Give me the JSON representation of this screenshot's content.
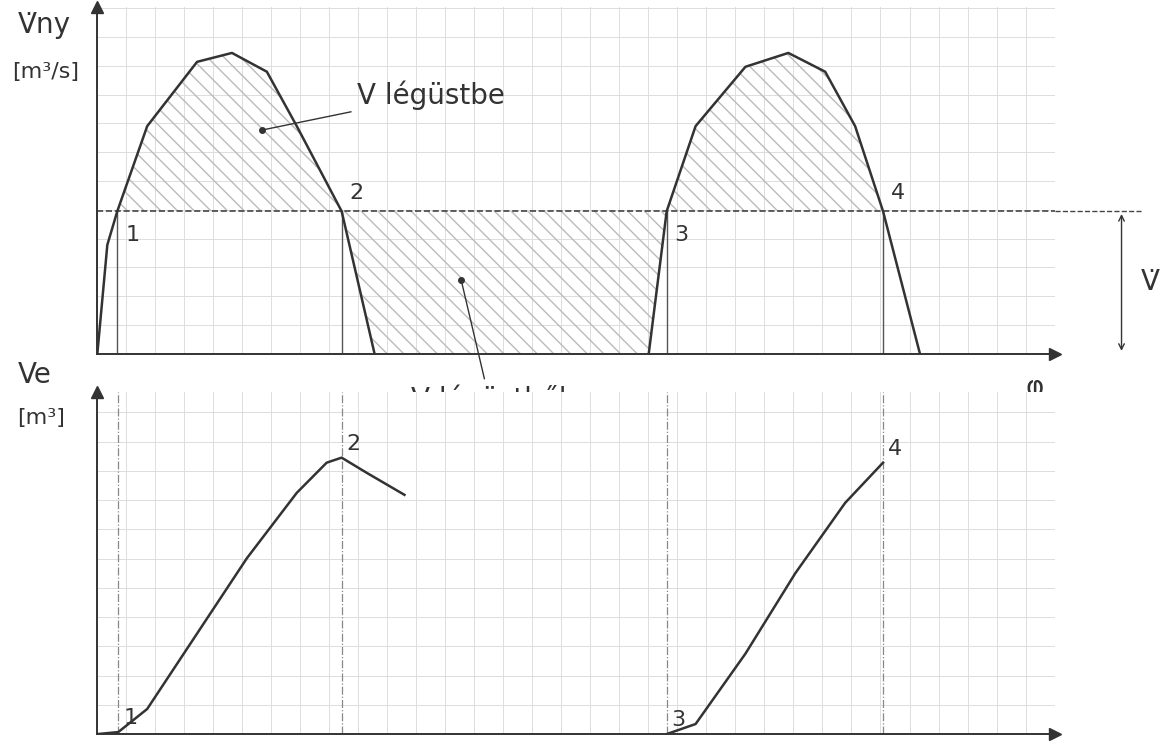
{
  "chart_data": [
    {
      "type": "line",
      "y_label": "V̇ny",
      "y_unit": "[m³/s]",
      "x_label": "φ",
      "xlim": [
        0,
        9.6
      ],
      "ylim": [
        0,
        3.5
      ],
      "tick_labels": false,
      "grid": true,
      "series": [
        {
          "x": [
            0,
            0.1,
            0.2,
            0.5,
            1.0,
            1.35,
            1.7,
            2.0,
            2.45,
            2.78
          ],
          "values": [
            0,
            1.1,
            1.44,
            2.3,
            2.95,
            3.04,
            2.85,
            2.3,
            1.44,
            0
          ],
          "color": "#333333"
        },
        {
          "x": [
            5.53,
            5.71,
            6.0,
            6.5,
            6.93,
            7.3,
            7.6,
            7.88,
            8.25
          ],
          "values": [
            0,
            1.44,
            2.3,
            2.9,
            3.04,
            2.85,
            2.3,
            1.44,
            0
          ],
          "color": "#333333"
        }
      ],
      "mean": {
        "label": "V̇",
        "value": 1.44,
        "line_style": "dashed"
      },
      "points": [
        {
          "label": "1",
          "x": 0.2,
          "y": 1.44
        },
        {
          "label": "2",
          "x": 2.45,
          "y": 1.44
        },
        {
          "label": "3",
          "x": 5.71,
          "y": 1.44
        },
        {
          "label": "4",
          "x": 7.88,
          "y": 1.44
        }
      ],
      "annotations": [
        {
          "text": "V légüstbe",
          "x": 1.65,
          "y": 2.26
        },
        {
          "text": "V légüstből",
          "x": 3.65,
          "y": 0.74
        }
      ]
    },
    {
      "type": "line",
      "y_label": "Ve",
      "y_unit": "[m³]",
      "xlim": [
        0,
        9.6
      ],
      "ylim": [
        0,
        3.4
      ],
      "tick_labels": false,
      "grid": true,
      "series": [
        {
          "x": [
            0,
            0.21,
            0.5,
            1.0,
            1.5,
            2.0,
            2.3,
            2.45,
            2.7,
            3.08
          ],
          "values": [
            0,
            0.02,
            0.25,
            1.0,
            1.75,
            2.4,
            2.7,
            2.75,
            2.6,
            2.38
          ],
          "color": "#333333"
        },
        {
          "x": [
            5.71,
            6.0,
            6.5,
            7.0,
            7.5,
            7.88
          ],
          "values": [
            0,
            0.1,
            0.8,
            1.6,
            2.3,
            2.7
          ],
          "color": "#333333"
        }
      ],
      "points": [
        {
          "label": "1",
          "x": 0.21,
          "y": 0.02
        },
        {
          "label": "2",
          "x": 2.45,
          "y": 2.75
        },
        {
          "label": "3",
          "x": 5.71,
          "y": 0
        },
        {
          "label": "4",
          "x": 7.88,
          "y": 2.7
        }
      ]
    }
  ]
}
